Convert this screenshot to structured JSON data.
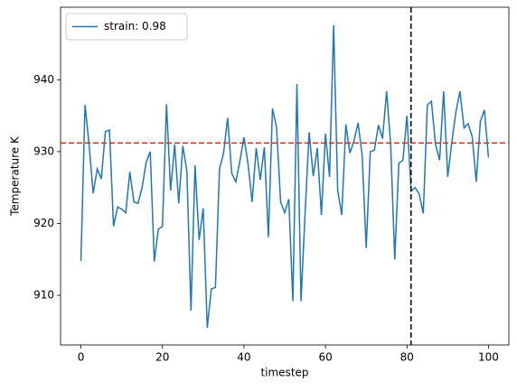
{
  "chart_data": {
    "type": "line",
    "xlabel": "timestep",
    "ylabel": "Temperature K",
    "x": [
      0,
      1,
      2,
      3,
      4,
      5,
      6,
      7,
      8,
      9,
      10,
      11,
      12,
      13,
      14,
      15,
      16,
      17,
      18,
      19,
      20,
      21,
      22,
      23,
      24,
      25,
      26,
      27,
      28,
      29,
      30,
      31,
      32,
      33,
      34,
      35,
      36,
      37,
      38,
      39,
      40,
      41,
      42,
      43,
      44,
      45,
      46,
      47,
      48,
      49,
      50,
      51,
      52,
      53,
      54,
      55,
      56,
      57,
      58,
      59,
      60,
      61,
      62,
      63,
      64,
      65,
      66,
      67,
      68,
      69,
      70,
      71,
      72,
      73,
      74,
      75,
      76,
      77,
      78,
      79,
      80,
      81,
      82,
      83,
      84,
      85,
      86,
      87,
      88,
      89,
      90,
      91,
      92,
      93,
      94,
      95,
      96,
      97,
      98,
      99,
      100
    ],
    "series": [
      {
        "name": "strain: 0.98",
        "color": "#1f77b4",
        "values": [
          914.8,
          936.5,
          931,
          924.2,
          927.6,
          926.2,
          932.8,
          933,
          919.6,
          922.3,
          922,
          921.5,
          927.2,
          923,
          922.8,
          925,
          928.5,
          930,
          914.7,
          919.2,
          919.6,
          936.6,
          924.6,
          931,
          922.8,
          930.8,
          927.3,
          907.9,
          928.1,
          917.7,
          922.1,
          905.5,
          910.9,
          911.1,
          927.6,
          929.8,
          934.7,
          927,
          925.8,
          928.7,
          932,
          928.3,
          923,
          930.5,
          926.1,
          930.6,
          918.1,
          936,
          933.4,
          923,
          921.5,
          923.4,
          909.2,
          939.4,
          909.2,
          921.5,
          932.7,
          926.6,
          930.5,
          921.2,
          932.5,
          926.5,
          947.6,
          924.6,
          921.2,
          933.8,
          929.8,
          931.5,
          934,
          929.5,
          916.6,
          930,
          930.2,
          933.7,
          931.8,
          938.4,
          931,
          915,
          928.4,
          928.8,
          935,
          924.5,
          925,
          924.1,
          921.4,
          936.5,
          937,
          931,
          928.8,
          938.4,
          926.5,
          931.3,
          935.5,
          938.4,
          933.3,
          933.9,
          932.1,
          925.8,
          934.2,
          935.8,
          929.2
        ]
      }
    ],
    "hline": {
      "y": 931.2,
      "color": "#d62728"
    },
    "vline": {
      "x": 81,
      "color": "#000000"
    },
    "xlim": [
      -5,
      105
    ],
    "xticks": [
      0,
      20,
      40,
      60,
      80,
      100
    ],
    "ylim": [
      903.1,
      950.1
    ],
    "yticks": [
      910,
      920,
      930,
      940
    ],
    "legend": "upper left"
  }
}
